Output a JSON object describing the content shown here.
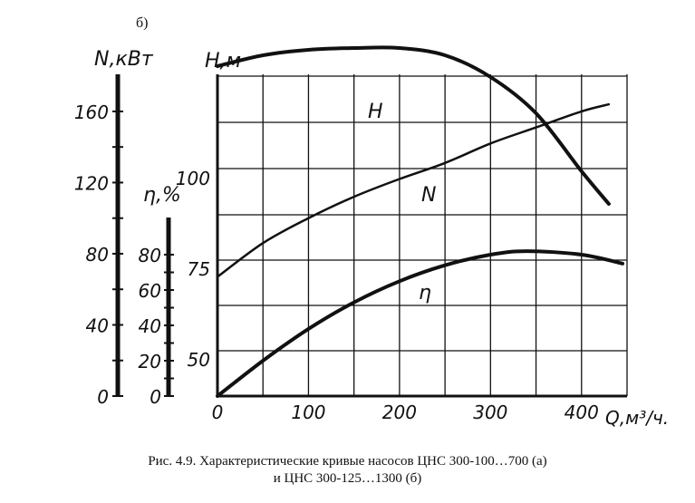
{
  "panel_label": "б)",
  "caption": {
    "line1": "Рис. 4.9. Характеристические кривые насосов ЦНС 300-100…700 (а)",
    "line2": "и ЦНС 300-125…1300 (б)"
  },
  "chart_data": {
    "type": "line",
    "x_axis": {
      "label": "Q,м³/ч.",
      "range": [
        0,
        450
      ],
      "ticks": [
        "0",
        "100",
        "200",
        "300",
        "400"
      ]
    },
    "h_axis": {
      "label": "H,м",
      "ticks": [
        "50",
        "75",
        "100"
      ],
      "tick_values": [
        50,
        75,
        100
      ]
    },
    "n_axis": {
      "label": "N,кВт",
      "ticks": [
        "0",
        "40",
        "80",
        "120",
        "160"
      ],
      "tick_values": [
        0,
        40,
        80,
        120,
        160
      ]
    },
    "eta_axis": {
      "label": "η,%",
      "ticks": [
        "0",
        "20",
        "40",
        "60",
        "80"
      ],
      "tick_values": [
        0,
        20,
        40,
        60,
        80
      ]
    },
    "grid": true,
    "series": [
      {
        "name": "H",
        "axis": "h",
        "x": [
          0,
          50,
          100,
          150,
          200,
          250,
          300,
          350,
          400,
          430
        ],
        "y": [
          131,
          134,
          135.5,
          136,
          136,
          134,
          128,
          118,
          102,
          93
        ]
      },
      {
        "name": "N",
        "axis": "n",
        "x": [
          0,
          50,
          100,
          150,
          200,
          250,
          300,
          350,
          400,
          430
        ],
        "y": [
          67,
          86,
          100,
          112,
          122,
          131,
          142,
          151,
          160,
          164
        ]
      },
      {
        "name": "η",
        "axis": "eta",
        "x": [
          0,
          50,
          100,
          150,
          200,
          250,
          300,
          340,
          400,
          445
        ],
        "y": [
          0,
          20,
          38,
          53,
          65,
          74,
          80,
          82,
          80,
          75
        ]
      }
    ],
    "annotations": [
      {
        "text": "H",
        "near": "H"
      },
      {
        "text": "N",
        "near": "N"
      },
      {
        "text": "η",
        "near": "η"
      }
    ]
  }
}
